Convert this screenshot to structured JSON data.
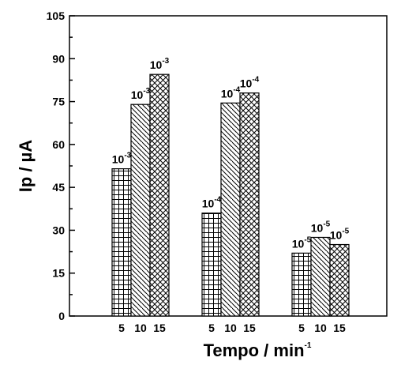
{
  "chart_data": {
    "type": "bar",
    "xlabel": "Tempo / min",
    "xlabel_sup": "-1",
    "ylabel": "Ip / µA",
    "ylim": [
      0,
      105
    ],
    "yticks": [
      0,
      15,
      30,
      45,
      60,
      75,
      90,
      105
    ],
    "tick_labels": [
      "5",
      "10",
      "15"
    ],
    "groups": [
      {
        "bars": [
          {
            "value": 51.5,
            "pattern": "grid",
            "label_base": "10",
            "label_exp": "-3"
          },
          {
            "value": 74,
            "pattern": "hatch-back",
            "label_base": "10",
            "label_exp": "-3"
          },
          {
            "value": 84.5,
            "pattern": "crosshatch",
            "label_base": "10",
            "label_exp": "-3"
          }
        ]
      },
      {
        "bars": [
          {
            "value": 36,
            "pattern": "grid",
            "label_base": "10",
            "label_exp": "-4"
          },
          {
            "value": 74.5,
            "pattern": "hatch-back",
            "label_base": "10",
            "label_exp": "-4"
          },
          {
            "value": 78,
            "pattern": "crosshatch",
            "label_base": "10",
            "label_exp": "-4"
          }
        ]
      },
      {
        "bars": [
          {
            "value": 22,
            "pattern": "grid",
            "label_base": "10",
            "label_exp": "-5"
          },
          {
            "value": 27.5,
            "pattern": "hatch-back",
            "label_base": "10",
            "label_exp": "-5"
          },
          {
            "value": 25,
            "pattern": "crosshatch",
            "label_base": "10",
            "label_exp": "-5"
          }
        ]
      }
    ],
    "grid": false,
    "legend": "none"
  }
}
